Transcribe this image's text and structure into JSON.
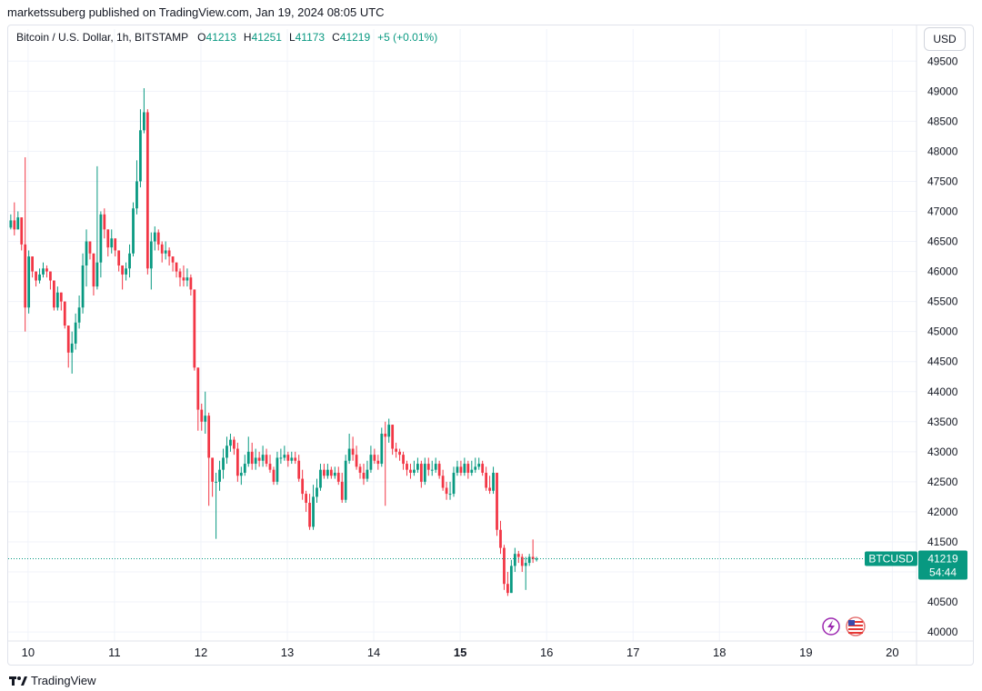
{
  "publisher": "marketssuberg published on TradingView.com, Jan 19, 2024 08:05 UTC",
  "legend": {
    "symbol": "Bitcoin / U.S. Dollar, 1h, BITSTAMP",
    "o_label": "O",
    "o_value": "41213",
    "h_label": "H",
    "h_value": "41251",
    "l_label": "L",
    "l_value": "41173",
    "c_label": "C",
    "c_value": "41219",
    "change": "+5 (+0.01%)"
  },
  "currency_button": "USD",
  "footer_logo": "TradingView",
  "colors": {
    "up": "#089981",
    "down": "#f23645",
    "grid": "#f0f3fa",
    "text": "#131722"
  },
  "icons": [
    "lightning-icon",
    "us-flag-icon"
  ],
  "chart_data": {
    "type": "candlestick",
    "timeframe": "1h",
    "x_ticks": [
      {
        "label": "10",
        "day": 10
      },
      {
        "label": "11",
        "day": 11
      },
      {
        "label": "12",
        "day": 12
      },
      {
        "label": "13",
        "day": 13
      },
      {
        "label": "14",
        "day": 14
      },
      {
        "label": "15",
        "day": 15,
        "bold": true
      },
      {
        "label": "16",
        "day": 16
      },
      {
        "label": "17",
        "day": 17
      },
      {
        "label": "18",
        "day": 18
      },
      {
        "label": "19",
        "day": 19
      },
      {
        "label": "20",
        "day": 20
      }
    ],
    "y_ticks": [
      40000,
      40500,
      41000,
      41500,
      42000,
      42500,
      43000,
      43500,
      44000,
      44500,
      45000,
      45500,
      46000,
      46500,
      47000,
      47500,
      48000,
      48500,
      49000,
      49500
    ],
    "ylim": [
      39850,
      49580
    ],
    "xlim_day": [
      9.77,
      20.28
    ],
    "first_day": 9.8,
    "last_price": 41219,
    "last_label": "BTCUSD",
    "countdown": "54:44",
    "closes": [
      46850,
      46700,
      46900,
      46450,
      45400,
      46250,
      46000,
      45850,
      45950,
      46050,
      46000,
      45850,
      45400,
      45650,
      45500,
      45100,
      44650,
      44800,
      45150,
      45400,
      46100,
      46500,
      46300,
      45750,
      46150,
      46950,
      46700,
      46400,
      46550,
      46350,
      46100,
      45950,
      46050,
      46300,
      47050,
      47500,
      48350,
      48650,
      46050,
      46500,
      46650,
      46450,
      46300,
      46350,
      46250,
      46150,
      46000,
      45900,
      45850,
      45900,
      45700,
      44400,
      43700,
      43500,
      43600,
      42900,
      42500,
      42500,
      42700,
      42900,
      43100,
      43200,
      43050,
      42600,
      42650,
      42800,
      43000,
      42800,
      42900,
      42850,
      42950,
      42800,
      42700,
      42500,
      42900,
      42900,
      42950,
      42850,
      42900,
      42850,
      42550,
      42300,
      42150,
      41750,
      42250,
      42400,
      42700,
      42600,
      42700,
      42600,
      42650,
      42500,
      42200,
      42850,
      43050,
      42950,
      42750,
      42650,
      42550,
      42700,
      42950,
      42850,
      42800,
      43300,
      43250,
      43450,
      43050,
      43000,
      42950,
      42800,
      42700,
      42650,
      42700,
      42800,
      42500,
      42800,
      42700,
      42700,
      42800,
      42600,
      42400,
      42300,
      42300,
      42650,
      42750,
      42650,
      42800,
      42650,
      42700,
      42750,
      42800,
      42650,
      42400,
      42350,
      42650,
      41700,
      41400,
      40800,
      40650,
      41100,
      41300,
      41250,
      41100,
      41150,
      41250,
      41213,
      41219
    ],
    "highs": [
      46950,
      47150,
      47000,
      46600,
      47900,
      46350,
      46150,
      46000,
      46050,
      46150,
      46100,
      46000,
      45700,
      45750,
      45650,
      45500,
      44800,
      45000,
      45300,
      45600,
      46300,
      46700,
      46500,
      46200,
      47750,
      47000,
      47050,
      46650,
      46700,
      46550,
      46350,
      46100,
      46150,
      46450,
      47150,
      47850,
      48700,
      49050,
      48700,
      46650,
      46750,
      46700,
      46500,
      46500,
      46400,
      46250,
      46150,
      46050,
      46100,
      46050,
      45950,
      45700,
      44000,
      43800,
      44000,
      43650,
      42750,
      42650,
      42850,
      43050,
      43250,
      43300,
      43250,
      43150,
      42750,
      42950,
      43250,
      43150,
      43050,
      43000,
      43100,
      43050,
      42950,
      42750,
      43000,
      43050,
      43100,
      43000,
      43000,
      43000,
      42950,
      42700,
      42350,
      42300,
      42450,
      42550,
      42800,
      42800,
      42800,
      42750,
      42750,
      42750,
      42650,
      42950,
      43300,
      43250,
      43100,
      42800,
      42800,
      42850,
      43100,
      43050,
      42950,
      43400,
      43500,
      43550,
      43450,
      43150,
      43050,
      43000,
      42850,
      42800,
      42850,
      42900,
      42850,
      42900,
      42900,
      42850,
      42900,
      42850,
      42700,
      42500,
      42500,
      42750,
      42850,
      42850,
      42900,
      42850,
      42850,
      42900,
      42900,
      42850,
      42750,
      42600,
      42750,
      42650,
      41850,
      41450,
      41000,
      41200,
      41400,
      41350,
      41300,
      41250,
      41300,
      41540,
      41251
    ],
    "lows": [
      46700,
      46600,
      46700,
      46350,
      45000,
      45300,
      45900,
      45750,
      45800,
      45900,
      45900,
      45700,
      45350,
      45350,
      45350,
      45050,
      44400,
      44300,
      44700,
      45050,
      45300,
      45750,
      46200,
      45600,
      45700,
      45900,
      46550,
      46250,
      46300,
      46250,
      46000,
      45700,
      45850,
      45900,
      46250,
      46950,
      47400,
      48300,
      45950,
      45700,
      46350,
      46350,
      46150,
      46200,
      46100,
      46000,
      45900,
      45750,
      45750,
      45750,
      45600,
      44350,
      43350,
      43350,
      43300,
      42100,
      42250,
      41550,
      42350,
      42550,
      42800,
      43000,
      42950,
      42500,
      42450,
      42600,
      42750,
      42700,
      42700,
      42750,
      42750,
      42750,
      42650,
      42450,
      42450,
      42800,
      42850,
      42750,
      42800,
      42800,
      42500,
      42200,
      42000,
      41700,
      41700,
      42150,
      42350,
      42550,
      42550,
      42550,
      42550,
      42450,
      42150,
      42150,
      42800,
      42850,
      42700,
      42550,
      42450,
      42500,
      42650,
      42800,
      42700,
      42750,
      42100,
      43150,
      42950,
      42900,
      42850,
      42700,
      42600,
      42550,
      42600,
      42650,
      42400,
      42450,
      42600,
      42600,
      42650,
      42550,
      42350,
      42200,
      42200,
      42250,
      42600,
      42600,
      42600,
      42550,
      42600,
      42650,
      42700,
      42600,
      42350,
      42300,
      42300,
      41600,
      41300,
      40700,
      40600,
      40650,
      41000,
      41150,
      41000,
      40700,
      41100,
      41150,
      41173
    ]
  }
}
